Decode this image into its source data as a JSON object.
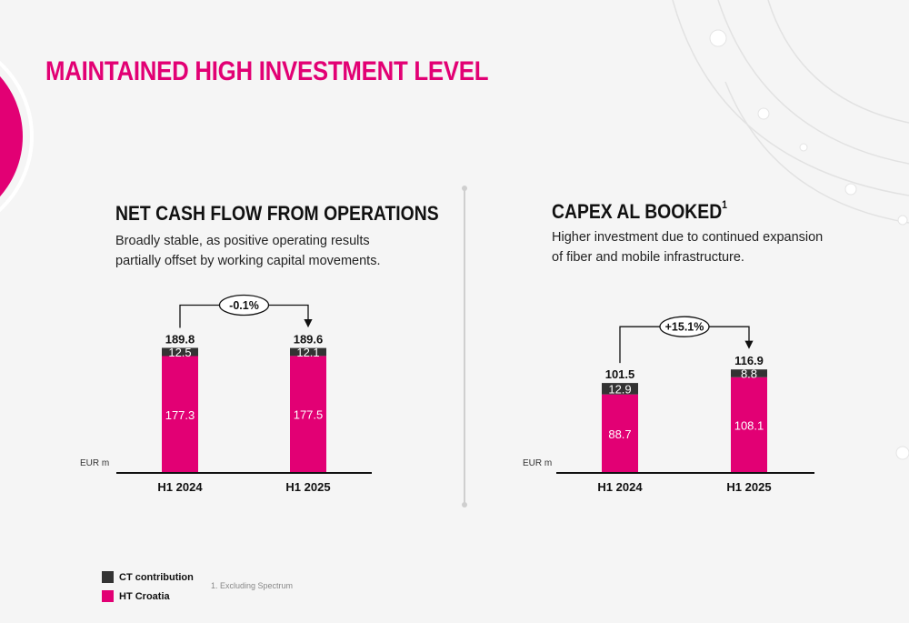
{
  "title": "MAINTAINED HIGH INVESTMENT LEVEL",
  "colors": {
    "brand": "#e20074",
    "dark": "#333333",
    "connector": "#111111"
  },
  "legend": [
    {
      "label": "CT contribution",
      "color": "#333333"
    },
    {
      "label": "HT Croatia",
      "color": "#e20074"
    }
  ],
  "footnote": "1. Excluding Spectrum",
  "panels": [
    {
      "title": "NET CASH FLOW FROM OPERATIONS",
      "sup": "",
      "subtitle": "Broadly stable, as positive operating results partially offset by working capital movements."
    },
    {
      "title": "CAPEX AL BOOKED",
      "sup": "1",
      "subtitle": "Higher investment due to continued expansion of fiber and mobile infrastructure."
    }
  ],
  "chart_data": [
    {
      "type": "bar",
      "stacked": true,
      "unit_label": "EUR m",
      "categories": [
        "H1 2024",
        "H1 2025"
      ],
      "series": [
        {
          "name": "HT Croatia",
          "values": [
            177.3,
            177.5
          ],
          "labels": [
            "177.3",
            "177.5"
          ]
        },
        {
          "name": "CT contribution",
          "values": [
            12.5,
            12.1
          ],
          "labels": [
            "12.5",
            "12.1"
          ]
        }
      ],
      "totals": [
        189.8,
        189.6
      ],
      "total_labels": [
        "189.8",
        "189.6"
      ],
      "change_label": "-0.1%",
      "ylim": [
        0,
        207
      ]
    },
    {
      "type": "bar",
      "stacked": true,
      "unit_label": "EUR m",
      "categories": [
        "H1 2024",
        "H1 2025"
      ],
      "series": [
        {
          "name": "HT Croatia",
          "values": [
            88.7,
            108.1
          ],
          "labels": [
            "88.7",
            "108.1"
          ]
        },
        {
          "name": "CT contribution",
          "values": [
            12.9,
            8.8
          ],
          "labels": [
            "12.9",
            "8.8"
          ]
        }
      ],
      "totals": [
        101.5,
        116.9
      ],
      "total_labels": [
        "101.5",
        "116.9"
      ],
      "change_label": "+15.1%",
      "ylim": [
        0,
        113
      ]
    }
  ]
}
